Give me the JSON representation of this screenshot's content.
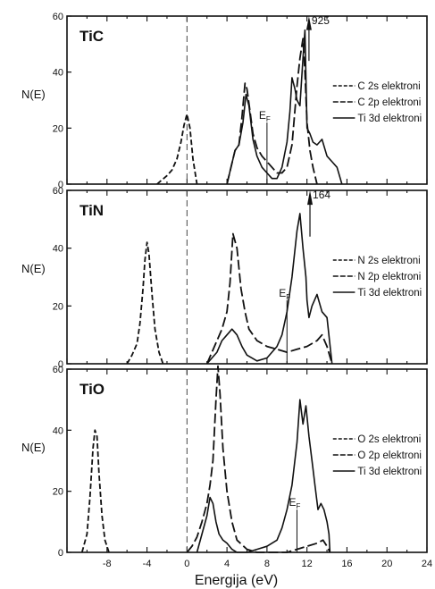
{
  "chart_data": [
    {
      "type": "line",
      "title": "TiC",
      "ylabel": "N(E)",
      "ylim": [
        0,
        60
      ],
      "yticks": [
        "0",
        "20",
        "40",
        "60"
      ],
      "xlim": [
        -12,
        24
      ],
      "annotations": {
        "peak_label": "925",
        "fermi_label": "E",
        "fermi_sub": "F"
      },
      "fermi_level": 8,
      "series": [
        {
          "name": "C 2s elektroni",
          "style": "dashed",
          "x": [
            -3,
            -2,
            -1.5,
            -1,
            -0.6,
            -0.3,
            0,
            0.3,
            0.6,
            1
          ],
          "y": [
            0,
            3,
            5,
            9,
            15,
            21,
            25,
            20,
            9,
            0
          ]
        },
        {
          "name": "C 2p elektroni",
          "style": "longdash",
          "x": [
            4,
            4.4,
            4.8,
            5.2,
            5.5,
            5.8,
            6,
            6.3,
            6.6,
            7,
            7.5,
            8,
            8.5,
            9,
            9.5,
            10,
            10.5,
            11,
            11.3,
            11.6,
            11.8,
            12,
            12.3,
            12.6,
            13
          ],
          "y": [
            0,
            6,
            12,
            14,
            24,
            36,
            34,
            26,
            18,
            13,
            10,
            8,
            6,
            4,
            4,
            6,
            14,
            35,
            45,
            52,
            40,
            22,
            12,
            6,
            0
          ]
        },
        {
          "name": "Ti 3d elektroni",
          "style": "solid",
          "x": [
            4,
            4.4,
            4.8,
            5.2,
            5.6,
            5.9,
            6.2,
            6.6,
            7,
            7.5,
            8,
            8.5,
            9,
            9.5,
            10,
            10.3,
            10.5,
            10.8,
            11,
            11.3,
            11.6,
            11.8,
            12,
            12.3,
            12.6,
            13,
            13.5,
            14,
            14.5,
            15,
            15.5
          ],
          "y": [
            0,
            6,
            12,
            14,
            22,
            32,
            28,
            16,
            10,
            6,
            4,
            2,
            2,
            6,
            15,
            26,
            38,
            34,
            30,
            28,
            45,
            55,
            20,
            18,
            15,
            14,
            16,
            10,
            8,
            6,
            0
          ]
        }
      ]
    },
    {
      "type": "line",
      "title": "TiN",
      "ylabel": "N(E)",
      "ylim": [
        0,
        60
      ],
      "yticks": [
        "0",
        "20",
        "40",
        "60"
      ],
      "xlim": [
        -12,
        24
      ],
      "annotations": {
        "peak_label": "164",
        "fermi_label": "E",
        "fermi_sub": "F"
      },
      "fermi_level": 10,
      "series": [
        {
          "name": "N 2s elektroni",
          "style": "dashed",
          "x": [
            -6,
            -5.5,
            -5,
            -4.7,
            -4.4,
            -4.2,
            -4,
            -3.8,
            -3.5,
            -3.2,
            -2.8,
            -2.4
          ],
          "y": [
            0,
            3,
            7,
            14,
            26,
            36,
            42,
            38,
            24,
            12,
            4,
            0
          ]
        },
        {
          "name": "N 2p elektroni",
          "style": "longdash",
          "x": [
            2,
            2.5,
            3,
            3.5,
            4,
            4.3,
            4.6,
            5,
            5.4,
            5.8,
            6.2,
            7,
            8,
            9,
            10,
            11,
            12,
            13,
            13.5,
            14,
            14.5
          ],
          "y": [
            0,
            4,
            8,
            12,
            18,
            28,
            45,
            40,
            26,
            18,
            12,
            8,
            6,
            5,
            4,
            5,
            6,
            8,
            10,
            6,
            0
          ]
        },
        {
          "name": "Ti 3d elektroni",
          "style": "solid",
          "x": [
            2,
            2.5,
            3,
            3.5,
            4,
            4.5,
            5,
            5.5,
            6,
            7,
            8,
            9,
            9.5,
            10,
            10.5,
            11,
            11.3,
            11.6,
            11.9,
            12,
            12.2,
            12.5,
            13,
            13.5,
            14,
            14.5
          ],
          "y": [
            0,
            2,
            4,
            8,
            10,
            12,
            10,
            6,
            3,
            1,
            2,
            6,
            10,
            18,
            30,
            46,
            52,
            40,
            30,
            22,
            16,
            20,
            24,
            18,
            16,
            0
          ]
        }
      ]
    },
    {
      "type": "line",
      "title": "TiO",
      "ylabel": "N(E)",
      "ylim": [
        0,
        60
      ],
      "yticks": [
        "0",
        "20",
        "40",
        "60"
      ],
      "xlim": [
        -12,
        24
      ],
      "xticks": [
        "-8",
        "-4",
        "0",
        "4",
        "8",
        "12",
        "16",
        "20",
        "24"
      ],
      "xlabel": "Energija (eV)",
      "annotations": {
        "fermi_label": "E",
        "fermi_sub": "F"
      },
      "fermi_level": 11,
      "series": [
        {
          "name": "O 2s elektroni",
          "style": "dashed",
          "x": [
            -10.5,
            -10,
            -9.7,
            -9.4,
            -9.2,
            -9,
            -8.8,
            -8.5,
            -8.2,
            -7.8
          ],
          "y": [
            0,
            6,
            18,
            34,
            40,
            38,
            26,
            12,
            4,
            0
          ]
        },
        {
          "name": "O 2p elektroni",
          "style": "longdash",
          "x": [
            0,
            0.5,
            1,
            1.5,
            2,
            2.3,
            2.6,
            2.9,
            3.1,
            3.3,
            3.6,
            4,
            4.5,
            5,
            6,
            7,
            8,
            9,
            10,
            11,
            12,
            13,
            13.6,
            14,
            14.3
          ],
          "y": [
            0,
            2,
            5,
            10,
            16,
            22,
            30,
            50,
            61,
            52,
            34,
            20,
            10,
            4,
            1,
            0,
            0,
            0,
            0,
            1,
            2,
            3,
            4,
            2,
            0
          ]
        },
        {
          "name": "Ti 3d elektroni",
          "style": "solid",
          "x": [
            1,
            1.5,
            2,
            2.3,
            2.6,
            2.9,
            3.2,
            3.6,
            4,
            4.5,
            5,
            6,
            7,
            8,
            9,
            9.5,
            10,
            10.5,
            11,
            11.3,
            11.6,
            11.9,
            12.2,
            12.5,
            12.8,
            13.1,
            13.4,
            13.7,
            14,
            14.2,
            14.3
          ],
          "y": [
            0,
            6,
            12,
            18,
            16,
            10,
            6,
            4,
            3,
            1,
            0,
            0,
            1,
            2,
            4,
            8,
            14,
            22,
            36,
            50,
            42,
            48,
            38,
            30,
            22,
            14,
            16,
            14,
            10,
            6,
            0
          ]
        }
      ]
    }
  ]
}
